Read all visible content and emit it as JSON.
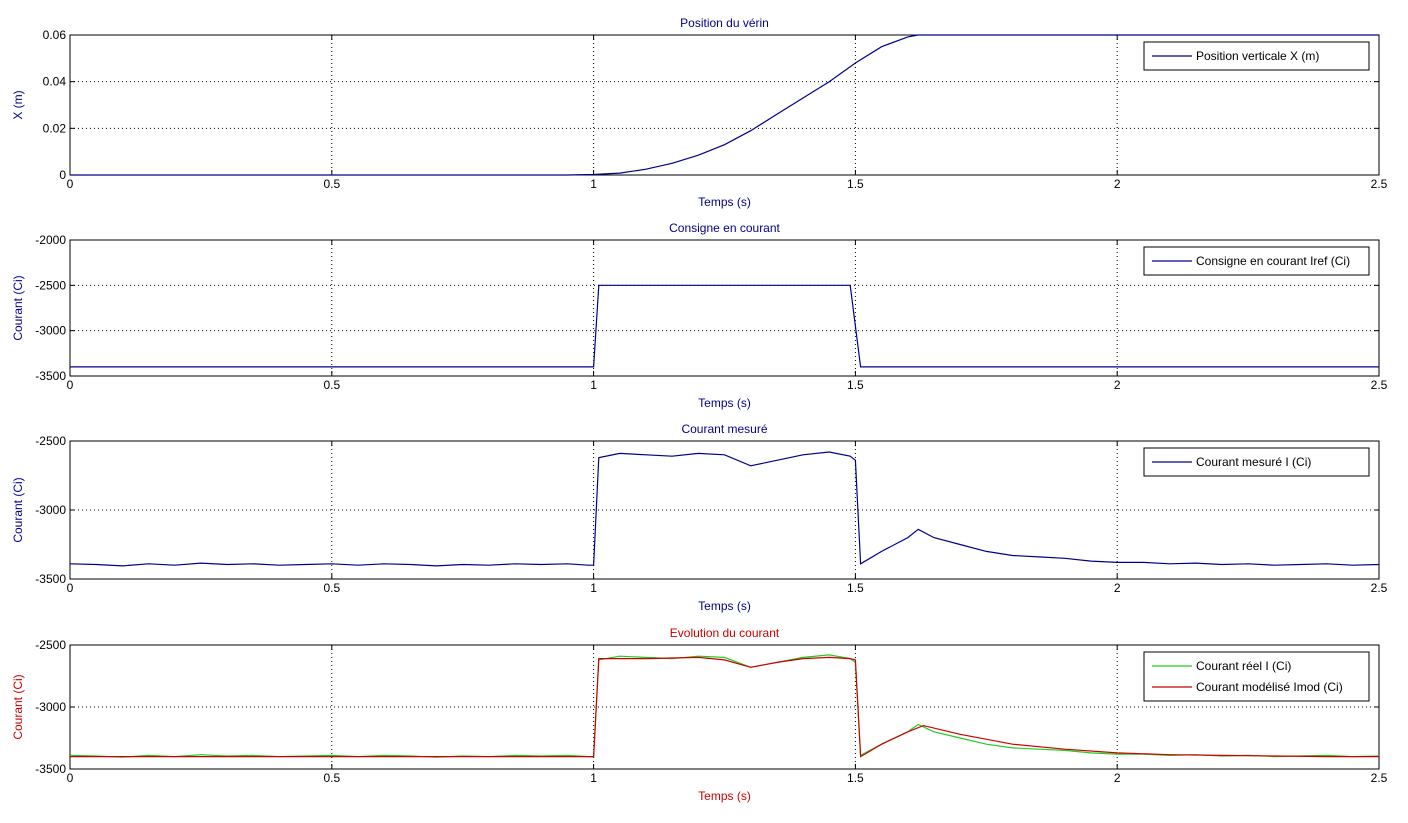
{
  "colors": {
    "blue": "#00008b",
    "green": "#22cc22",
    "red": "#cc0000",
    "axis": "#000000"
  },
  "chart_data": [
    {
      "type": "line",
      "title": "Position du vérin",
      "xlabel": "Temps (s)",
      "ylabel": "X (m)",
      "label_color": "blue",
      "xlim": [
        0,
        2.5
      ],
      "ylim": [
        0,
        0.06
      ],
      "xticks": [
        0,
        0.5,
        1,
        1.5,
        2,
        2.5
      ],
      "xtick_labels": [
        "0",
        "0.5",
        "1",
        "1.5",
        "2",
        "2.5"
      ],
      "yticks": [
        0,
        0.02,
        0.04,
        0.06
      ],
      "ytick_labels": [
        "0",
        "0.02",
        "0.04",
        "0.06"
      ],
      "grid": true,
      "legend_position": "top-right",
      "series": [
        {
          "name": "Position verticale X (m)",
          "color": "blue",
          "x": [
            0,
            0.5,
            0.95,
            1.0,
            1.05,
            1.1,
            1.15,
            1.2,
            1.25,
            1.3,
            1.35,
            1.4,
            1.45,
            1.5,
            1.55,
            1.6,
            1.62,
            2.5
          ],
          "y": [
            0,
            0,
            0,
            0.0002,
            0.0008,
            0.0025,
            0.005,
            0.0085,
            0.013,
            0.019,
            0.026,
            0.033,
            0.04,
            0.048,
            0.055,
            0.0592,
            0.06,
            0.06
          ]
        }
      ]
    },
    {
      "type": "line",
      "title": "Consigne en courant",
      "xlabel": "Temps (s)",
      "ylabel": "Courant (Ci)",
      "label_color": "blue",
      "xlim": [
        0,
        2.5
      ],
      "ylim": [
        -3500,
        -2000
      ],
      "xticks": [
        0,
        0.5,
        1,
        1.5,
        2,
        2.5
      ],
      "xtick_labels": [
        "0",
        "0.5",
        "1",
        "1.5",
        "2",
        "2.5"
      ],
      "yticks": [
        -3500,
        -3000,
        -2500,
        -2000
      ],
      "ytick_labels": [
        "-3500",
        "-3000",
        "-2500",
        "-2000"
      ],
      "grid": true,
      "legend_position": "top-right",
      "series": [
        {
          "name": "Consigne en courant Iref (Ci)",
          "color": "blue",
          "x": [
            0,
            1.0,
            1.01,
            1.49,
            1.51,
            2.5
          ],
          "y": [
            -3400,
            -3400,
            -2500,
            -2500,
            -3400,
            -3400
          ]
        }
      ]
    },
    {
      "type": "line",
      "title": "Courant mesuré",
      "xlabel": "Temps (s)",
      "ylabel": "Courant (Ci)",
      "label_color": "blue",
      "xlim": [
        0,
        2.5
      ],
      "ylim": [
        -3500,
        -2500
      ],
      "xticks": [
        0,
        0.5,
        1,
        1.5,
        2,
        2.5
      ],
      "xtick_labels": [
        "0",
        "0.5",
        "1",
        "1.5",
        "2",
        "2.5"
      ],
      "yticks": [
        -3500,
        -3000,
        -2500
      ],
      "ytick_labels": [
        "-3500",
        "-3000",
        "-2500"
      ],
      "grid": true,
      "legend_position": "top-right",
      "series": [
        {
          "name": "Courant mesuré I (Ci)",
          "color": "blue",
          "x": [
            0,
            0.05,
            0.1,
            0.15,
            0.2,
            0.25,
            0.3,
            0.35,
            0.4,
            0.45,
            0.5,
            0.55,
            0.6,
            0.65,
            0.7,
            0.75,
            0.8,
            0.85,
            0.9,
            0.95,
            0.99,
            1.0,
            1.01,
            1.05,
            1.1,
            1.15,
            1.2,
            1.25,
            1.3,
            1.35,
            1.4,
            1.45,
            1.49,
            1.5,
            1.51,
            1.55,
            1.6,
            1.62,
            1.65,
            1.7,
            1.75,
            1.8,
            1.85,
            1.9,
            1.95,
            2.0,
            2.05,
            2.1,
            2.15,
            2.2,
            2.25,
            2.3,
            2.35,
            2.4,
            2.45,
            2.5
          ],
          "y": [
            -3390,
            -3395,
            -3405,
            -3390,
            -3400,
            -3385,
            -3395,
            -3390,
            -3400,
            -3395,
            -3390,
            -3400,
            -3390,
            -3395,
            -3405,
            -3395,
            -3400,
            -3390,
            -3395,
            -3390,
            -3400,
            -3400,
            -2620,
            -2590,
            -2600,
            -2610,
            -2590,
            -2600,
            -2680,
            -2640,
            -2600,
            -2580,
            -2610,
            -2640,
            -3390,
            -3300,
            -3200,
            -3140,
            -3200,
            -3250,
            -3300,
            -3330,
            -3340,
            -3350,
            -3370,
            -3380,
            -3380,
            -3390,
            -3385,
            -3395,
            -3390,
            -3400,
            -3395,
            -3390,
            -3400,
            -3395
          ]
        }
      ]
    },
    {
      "type": "line",
      "title": "Evolution du courant",
      "xlabel": "Temps (s)",
      "ylabel": "Courant (Ci)",
      "label_color": "red",
      "xlim": [
        0,
        2.5
      ],
      "ylim": [
        -3500,
        -2500
      ],
      "xticks": [
        0,
        0.5,
        1,
        1.5,
        2,
        2.5
      ],
      "xtick_labels": [
        "0",
        "0.5",
        "1",
        "1.5",
        "2",
        "2.5"
      ],
      "yticks": [
        -3500,
        -3000,
        -2500
      ],
      "ytick_labels": [
        "-3500",
        "-3000",
        "-2500"
      ],
      "grid": true,
      "legend_position": "top-right",
      "series": [
        {
          "name": "Courant réel I (Ci)",
          "color": "green",
          "x": [
            0,
            0.05,
            0.1,
            0.15,
            0.2,
            0.25,
            0.3,
            0.35,
            0.4,
            0.45,
            0.5,
            0.55,
            0.6,
            0.65,
            0.7,
            0.75,
            0.8,
            0.85,
            0.9,
            0.95,
            0.99,
            1.0,
            1.01,
            1.05,
            1.1,
            1.15,
            1.2,
            1.25,
            1.3,
            1.35,
            1.4,
            1.45,
            1.49,
            1.5,
            1.51,
            1.55,
            1.6,
            1.62,
            1.65,
            1.7,
            1.75,
            1.8,
            1.85,
            1.9,
            1.95,
            2.0,
            2.05,
            2.1,
            2.15,
            2.2,
            2.25,
            2.3,
            2.35,
            2.4,
            2.45,
            2.5
          ],
          "y": [
            -3390,
            -3395,
            -3405,
            -3390,
            -3400,
            -3385,
            -3395,
            -3390,
            -3400,
            -3395,
            -3390,
            -3400,
            -3390,
            -3395,
            -3405,
            -3395,
            -3400,
            -3390,
            -3395,
            -3390,
            -3400,
            -3400,
            -2620,
            -2590,
            -2600,
            -2610,
            -2590,
            -2600,
            -2680,
            -2640,
            -2600,
            -2580,
            -2610,
            -2640,
            -3390,
            -3300,
            -3200,
            -3140,
            -3200,
            -3250,
            -3300,
            -3330,
            -3340,
            -3350,
            -3370,
            -3380,
            -3380,
            -3390,
            -3385,
            -3395,
            -3390,
            -3400,
            -3395,
            -3390,
            -3400,
            -3395
          ]
        },
        {
          "name": "Courant modélisé Imod (Ci)",
          "color": "red",
          "x": [
            0,
            0.99,
            1.0,
            1.01,
            1.05,
            1.1,
            1.15,
            1.2,
            1.25,
            1.3,
            1.35,
            1.4,
            1.45,
            1.49,
            1.5,
            1.51,
            1.55,
            1.6,
            1.63,
            1.7,
            1.8,
            1.9,
            2.0,
            2.1,
            2.2,
            2.3,
            2.4,
            2.5
          ],
          "y": [
            -3400,
            -3400,
            -3400,
            -2610,
            -2610,
            -2610,
            -2605,
            -2600,
            -2620,
            -2680,
            -2640,
            -2610,
            -2600,
            -2610,
            -2620,
            -3400,
            -3300,
            -3200,
            -3150,
            -3220,
            -3300,
            -3340,
            -3370,
            -3385,
            -3390,
            -3395,
            -3400,
            -3400
          ]
        }
      ]
    }
  ]
}
